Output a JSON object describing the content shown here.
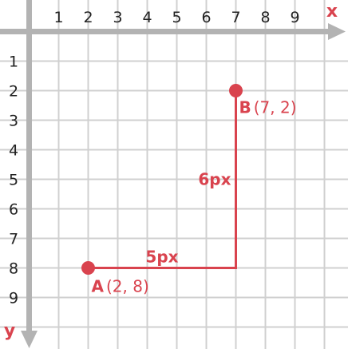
{
  "axes": {
    "x_label": "x",
    "y_label": "y",
    "x_ticks": [
      "1",
      "2",
      "3",
      "4",
      "5",
      "6",
      "7",
      "8",
      "9"
    ],
    "y_ticks": [
      "1",
      "2",
      "3",
      "4",
      "5",
      "6",
      "7",
      "8",
      "9"
    ]
  },
  "points": {
    "a": {
      "letter": "A",
      "coords": "(2, 8)",
      "x": 2,
      "y": 8
    },
    "b": {
      "letter": "B",
      "coords": "(7, 2)",
      "x": 7,
      "y": 2
    }
  },
  "segments": {
    "horizontal": {
      "label": "5px",
      "from": [
        2,
        8
      ],
      "to": [
        7,
        8
      ]
    },
    "vertical": {
      "label": "6px",
      "from": [
        7,
        8
      ],
      "to": [
        7,
        2
      ]
    }
  },
  "colors": {
    "accent": "#d9434e",
    "axis": "#b3b3b3",
    "grid": "#d0d0d0",
    "tick_text": "#222222",
    "background": "#ffffff"
  }
}
